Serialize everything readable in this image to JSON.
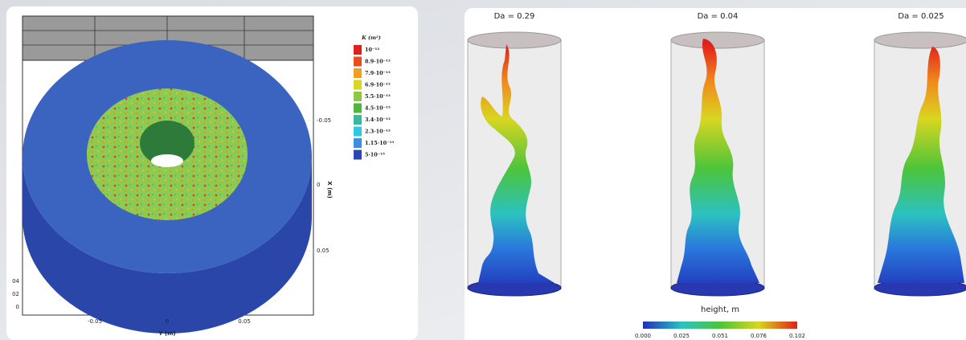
{
  "left_panel": {
    "legend": {
      "title": "K (m²)",
      "entries": [
        "10⁻¹²",
        "8.9·10⁻¹³",
        "7.9·10⁻¹³",
        "6.9·10⁻¹³",
        "5.5·10⁻¹³",
        "4.5·10⁻¹³",
        "3.4·10⁻¹³",
        "2.3·10⁻¹³",
        "1.15·10⁻¹³",
        "5·10⁻¹⁵"
      ]
    },
    "x_axis": {
      "label": "Y (m)",
      "ticks": [
        "-0.05",
        "0",
        "0.05"
      ]
    },
    "right_axis": {
      "label": "X (m)",
      "ticks": [
        "-0.05",
        "0",
        "0.05"
      ]
    },
    "left_ticks": [
      "04",
      "02",
      "0"
    ]
  },
  "right_panel": {
    "titles": [
      "Da = 0.29",
      "Da = 0.04",
      "Da = 0.025"
    ],
    "colorbar": {
      "label": "height, m",
      "ticks": [
        "0.000",
        "0.025",
        "0.051",
        "0.076",
        "0.102"
      ]
    }
  }
}
